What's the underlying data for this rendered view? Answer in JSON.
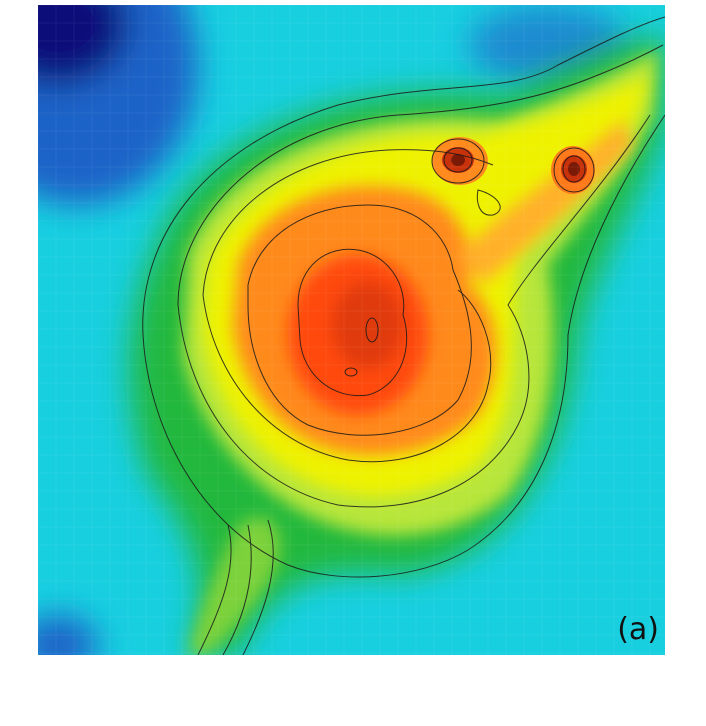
{
  "figure": {
    "panel_label": "(a)",
    "colormap": [
      "#0a0f7a",
      "#1f64c8",
      "#10d6e8",
      "#22b83c",
      "#e8f000",
      "#ff8a1e",
      "#ff4a10",
      "#7a1a06"
    ],
    "contour_color": "#1a1a1a"
  }
}
